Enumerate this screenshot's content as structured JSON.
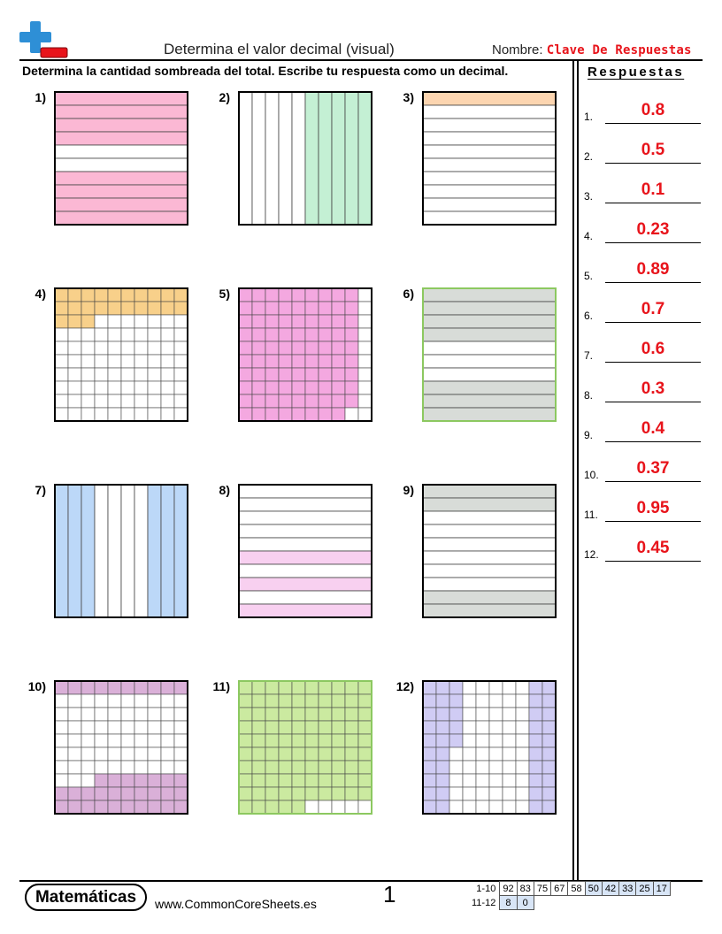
{
  "header": {
    "title": "Determina el valor decimal (visual)",
    "name_label": "Nombre:",
    "name_value": "Clave De Respuestas"
  },
  "instructions": "Determina la cantidad sombreada del total. Escribe tu respuesta como un decimal.",
  "answers": {
    "title": "Respuestas",
    "items": [
      {
        "num": "1.",
        "value": "0.8"
      },
      {
        "num": "2.",
        "value": "0.5"
      },
      {
        "num": "3.",
        "value": "0.1"
      },
      {
        "num": "4.",
        "value": "0.23"
      },
      {
        "num": "5.",
        "value": "0.89"
      },
      {
        "num": "6.",
        "value": "0.7"
      },
      {
        "num": "7.",
        "value": "0.6"
      },
      {
        "num": "8.",
        "value": "0.3"
      },
      {
        "num": "9.",
        "value": "0.4"
      },
      {
        "num": "10.",
        "value": "0.37"
      },
      {
        "num": "11.",
        "value": "0.95"
      },
      {
        "num": "12.",
        "value": "0.45"
      }
    ]
  },
  "problems": [
    {
      "label": "1)",
      "type": "rows",
      "shaded_rows": [
        0,
        1,
        2,
        3,
        6,
        7,
        8,
        9
      ],
      "fill": "#fbb8d4"
    },
    {
      "label": "2)",
      "type": "cols",
      "shaded_cols": [
        5,
        6,
        7,
        8,
        9
      ],
      "fill": "#c4f0d4"
    },
    {
      "label": "3)",
      "type": "rows",
      "shaded_rows": [
        0
      ],
      "fill": "#fcd5b0"
    },
    {
      "label": "4)",
      "type": "cells",
      "shaded_cells": 23,
      "fill": "#f8d08a"
    },
    {
      "label": "5)",
      "type": "cells",
      "pattern": "column_major",
      "shaded_cells": 89,
      "fill": "#f4a8e0"
    },
    {
      "label": "6)",
      "type": "rows",
      "shaded_rows": [
        0,
        1,
        2,
        3,
        7,
        8,
        9
      ],
      "fill": "#d8dcd8",
      "border": "#8cc860"
    },
    {
      "label": "7)",
      "type": "cols",
      "shaded_cols": [
        0,
        1,
        2,
        7,
        8,
        9
      ],
      "fill": "#bcd8f8"
    },
    {
      "label": "8)",
      "type": "rows",
      "shaded_rows": [
        5,
        7,
        9
      ],
      "fill": "#f8d0f0"
    },
    {
      "label": "9)",
      "type": "rows",
      "shaded_rows": [
        0,
        1,
        8,
        9
      ],
      "fill": "#d8dcd8"
    },
    {
      "label": "10)",
      "type": "cells",
      "pattern": "top_bottom",
      "top_cells": 10,
      "bottom_cells": 27,
      "fill": "#dab0d8"
    },
    {
      "label": "11)",
      "type": "cells",
      "shaded_cells": 95,
      "fill": "#cbeaa0",
      "border": "#8cc860"
    },
    {
      "label": "12)",
      "type": "cells",
      "pattern": "left_right",
      "left_cells": 25,
      "right_cells": 20,
      "fill": "#d0ccf4"
    }
  ],
  "footer": {
    "brand": "Matemáticas",
    "site": "www.CommonCoreSheets.es",
    "page": "1",
    "score_rows": [
      {
        "label": "1-10",
        "scores": [
          "92",
          "83",
          "75",
          "67",
          "58",
          "50",
          "42",
          "33",
          "25",
          "17"
        ]
      },
      {
        "label": "11-12",
        "scores": [
          "8",
          "0"
        ]
      }
    ]
  }
}
